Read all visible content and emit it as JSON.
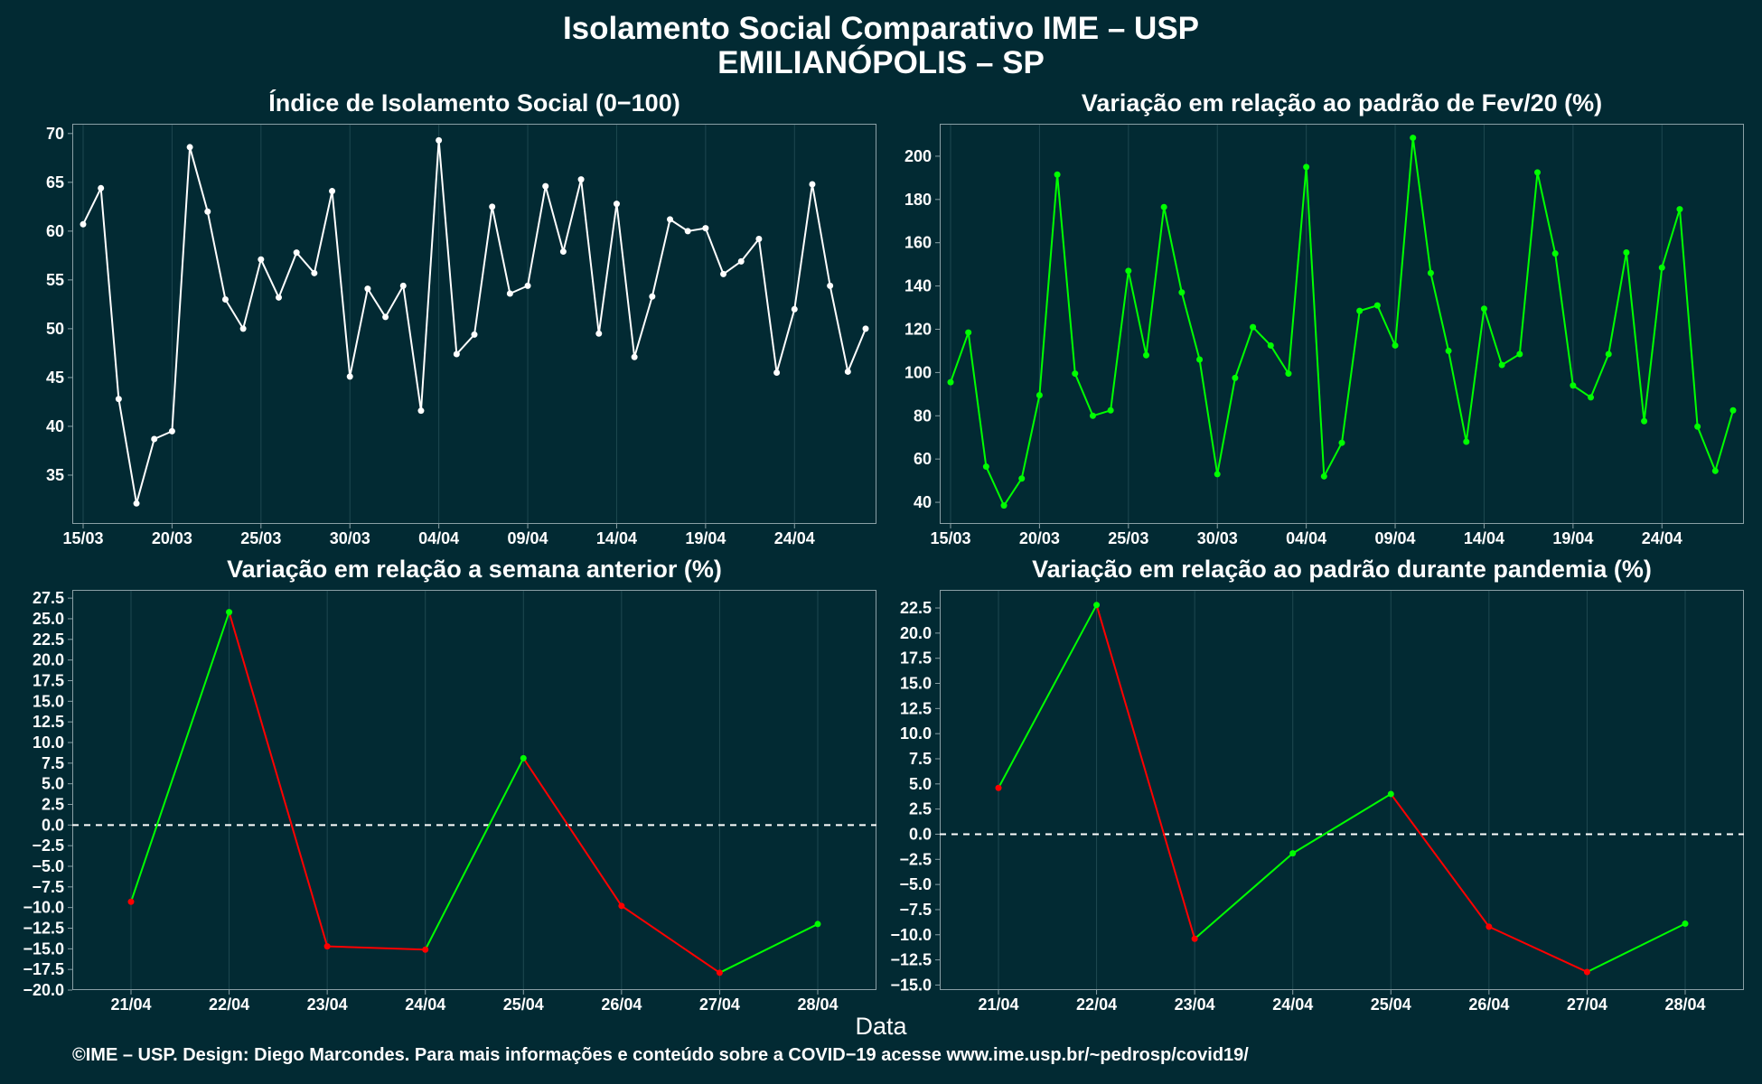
{
  "title_line1": "Isolamento Social Comparativo IME – USP",
  "title_line2": "EMILIANÓPOLIS – SP",
  "x_axis_label": "Data",
  "footer": "©IME – USP. Design: Diego Marcondes. Para mais informações e conteúdo sobre a COVID−19 acesse www.ime.usp.br/~pedrosp/covid19/",
  "colors": {
    "background": "#022a33",
    "white_series": "#ffffff",
    "green_series": "#00ff00",
    "red_series": "#ff0000"
  },
  "chart_data": [
    {
      "type": "line",
      "title": "Índice de Isolamento Social (0−100)",
      "color": "#ffffff",
      "x_ticks": [
        "15/03",
        "20/03",
        "25/03",
        "30/03",
        "04/04",
        "09/04",
        "14/04",
        "19/04",
        "24/04"
      ],
      "x_start": "15/03",
      "ylim": [
        30,
        71
      ],
      "y_ticks": [
        35,
        40,
        45,
        50,
        55,
        60,
        65,
        70
      ],
      "values": [
        60.7,
        64.4,
        42.8,
        32.1,
        38.7,
        39.5,
        68.6,
        62.0,
        53.0,
        50.0,
        57.1,
        53.2,
        57.8,
        55.7,
        64.1,
        45.1,
        54.1,
        51.2,
        54.4,
        41.6,
        69.3,
        47.4,
        49.4,
        62.5,
        53.6,
        54.4,
        64.6,
        57.9,
        65.3,
        49.5,
        62.8,
        47.1,
        53.3,
        61.2,
        60.0,
        60.3,
        55.6,
        56.9,
        59.2,
        45.5,
        52.0,
        64.8,
        54.4,
        45.6,
        50.0
      ]
    },
    {
      "type": "line",
      "title": "Variação em relação ao padrão de Fev/20 (%)",
      "color": "#00ff00",
      "x_ticks": [
        "15/03",
        "20/03",
        "25/03",
        "30/03",
        "04/04",
        "09/04",
        "14/04",
        "19/04",
        "24/04"
      ],
      "x_start": "15/03",
      "ylim": [
        30,
        215
      ],
      "y_ticks": [
        40,
        60,
        80,
        100,
        120,
        140,
        160,
        180,
        200
      ],
      "values": [
        95.5,
        118.5,
        56.5,
        38.5,
        51.0,
        89.5,
        191.5,
        99.5,
        80.0,
        82.5,
        147.0,
        108.0,
        176.5,
        137.0,
        106.0,
        53.0,
        97.5,
        121.0,
        112.5,
        99.5,
        195.0,
        52.0,
        67.5,
        128.5,
        131.0,
        112.5,
        208.5,
        146.0,
        110.0,
        68.0,
        129.5,
        103.5,
        108.5,
        192.5,
        155.0,
        94.0,
        88.5,
        108.5,
        155.5,
        77.5,
        148.5,
        175.5,
        75.0,
        54.5,
        82.5
      ]
    },
    {
      "type": "line",
      "title": "Variação em relação a semana anterior (%)",
      "colors_by_direction": {
        "up": "#00ff00",
        "down": "#ff0000"
      },
      "categories": [
        "21/04",
        "22/04",
        "23/04",
        "24/04",
        "25/04",
        "26/04",
        "27/04",
        "28/04"
      ],
      "ylim": [
        -20,
        28.5
      ],
      "y_ticks": [
        "27.5",
        "25.0",
        "22.5",
        "20.0",
        "17.5",
        "15.0",
        "12.5",
        "10.0",
        "7.5",
        "5.0",
        "2.5",
        "0.0",
        "−2.5",
        "−5.0",
        "−7.5",
        "−10.0",
        "−12.5",
        "−15.0",
        "−17.5",
        "−20.0"
      ],
      "reference_line": 0,
      "values": [
        -9.3,
        25.8,
        -14.7,
        -15.1,
        8.1,
        -9.8,
        -17.9,
        -12.0
      ]
    },
    {
      "type": "line",
      "title": "Variação em relação ao padrão durante pandemia (%)",
      "colors_by_direction": {
        "up": "#00ff00",
        "down": "#ff0000"
      },
      "categories": [
        "21/04",
        "22/04",
        "23/04",
        "24/04",
        "25/04",
        "26/04",
        "27/04",
        "28/04"
      ],
      "ylim": [
        -15.5,
        24.3
      ],
      "y_ticks": [
        "22.5",
        "20.0",
        "17.5",
        "15.0",
        "12.5",
        "10.0",
        "7.5",
        "5.0",
        "2.5",
        "0.0",
        "−2.5",
        "−5.0",
        "−7.5",
        "−10.0",
        "−12.5",
        "−15.0"
      ],
      "reference_line": 0,
      "values": [
        4.6,
        22.8,
        -10.4,
        -1.9,
        4.0,
        -9.2,
        -13.7,
        -8.9
      ]
    }
  ]
}
